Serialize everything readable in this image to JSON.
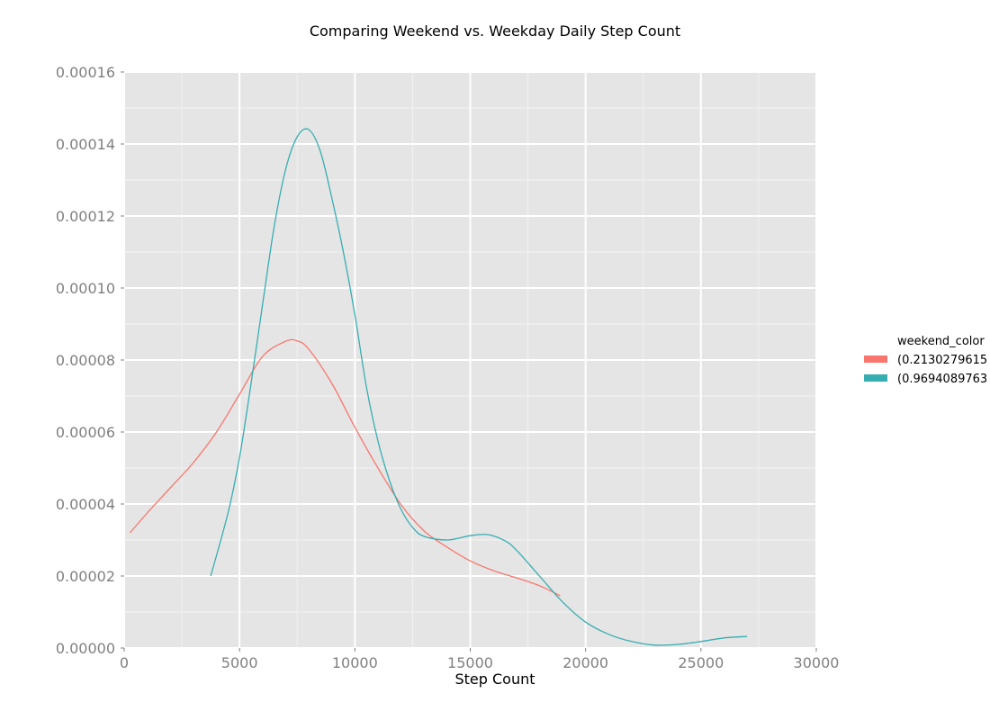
{
  "chart_data": {
    "type": "line",
    "title": "Comparing Weekend vs. Weekday Daily Step Count",
    "xlabel": "Step Count",
    "ylabel": "",
    "xlim": [
      0,
      30000
    ],
    "ylim": [
      0,
      0.00016
    ],
    "x_ticks": [
      "0",
      "5000",
      "10000",
      "15000",
      "20000",
      "25000",
      "30000"
    ],
    "y_ticks": [
      "0.00000",
      "0.00002",
      "0.00004",
      "0.00006",
      "0.00008",
      "0.00010",
      "0.00012",
      "0.00014",
      "0.00016"
    ],
    "x_tick_values": [
      0,
      5000,
      10000,
      15000,
      20000,
      25000,
      30000
    ],
    "y_tick_values": [
      0,
      2e-05,
      4e-05,
      6e-05,
      8e-05,
      0.0001,
      0.00012,
      0.00014,
      0.00016
    ],
    "grid": true,
    "background": "#e5e5e5",
    "legend": {
      "title": "weekend_color",
      "placement": "right"
    },
    "series": [
      {
        "name": "(0.2130279615",
        "color": "#f8766d",
        "x": [
          250,
          1000,
          2000,
          3000,
          4000,
          5000,
          6000,
          7000,
          7500,
          8000,
          9000,
          10000,
          11000,
          12000,
          13000,
          14000,
          15000,
          16000,
          17000,
          18000,
          18900
        ],
        "y": [
          3.2e-05,
          3.75e-05,
          4.45e-05,
          5.15e-05,
          6e-05,
          7.05e-05,
          8.1e-05,
          8.52e-05,
          8.53e-05,
          8.3e-05,
          7.35e-05,
          6.13e-05,
          5e-05,
          3.98e-05,
          3.25e-05,
          2.8e-05,
          2.42e-05,
          2.15e-05,
          1.95e-05,
          1.73e-05,
          1.45e-05
        ]
      },
      {
        "name": "(0.9694089763",
        "color": "#36aeb1",
        "x": [
          3750,
          4500,
          5000,
          5500,
          6000,
          6500,
          7000,
          7500,
          8000,
          8500,
          9000,
          9500,
          10000,
          10500,
          11000,
          11500,
          12000,
          12500,
          13000,
          14000,
          15000,
          15750,
          16500,
          17000,
          18000,
          19000,
          20000,
          21000,
          22000,
          23000,
          24000,
          25000,
          26000,
          27000
        ],
        "y": [
          2e-05,
          3.75e-05,
          5.3e-05,
          7.35e-05,
          9.55e-05,
          0.000117,
          0.000133,
          0.000142,
          0.000144,
          0.000138,
          0.000125,
          0.00011,
          9.25e-05,
          7.25e-05,
          5.75e-05,
          4.65e-05,
          3.85e-05,
          3.35e-05,
          3.1e-05,
          3e-05,
          3.12e-05,
          3.15e-05,
          2.98e-05,
          2.72e-05,
          2e-05,
          1.28e-05,
          7.2e-06,
          3.8e-06,
          1.8e-06,
          8e-07,
          1e-06,
          1.8e-06,
          2.8e-06,
          3.2e-06
        ]
      }
    ]
  }
}
